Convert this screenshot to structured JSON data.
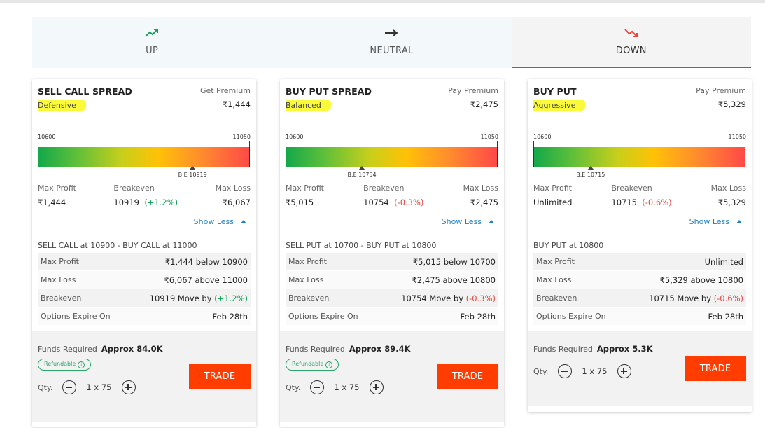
{
  "tabs": [
    {
      "label": "UP",
      "icon": "trend-up-icon",
      "color": "#17a05a"
    },
    {
      "label": "NEUTRAL",
      "icon": "arrow-right-icon",
      "color": "#333333"
    },
    {
      "label": "DOWN",
      "icon": "trend-down-icon",
      "color": "#e8453c",
      "active": true
    }
  ],
  "common": {
    "range_low": "10600",
    "range_high": "11050",
    "max_profit_label": "Max Profit",
    "breakeven_label": "Breakeven",
    "max_loss_label": "Max Loss",
    "show_less": "Show Less",
    "row_max_profit": "Max Profit",
    "row_max_loss": "Max Loss",
    "row_breakeven": "Breakeven",
    "row_expiry": "Options Expire On",
    "funds_label": "Funds Required",
    "refundable": "Refundable",
    "info_glyph": "i",
    "qty_label": "Qty.",
    "trade": "TRADE"
  },
  "cards": [
    {
      "title": "SELL CALL SPREAD",
      "tag": "Defensive",
      "premium_label": "Get Premium",
      "premium": "₹1,444",
      "be_label": "B.E 10919",
      "be_position": 0.73,
      "max_profit": "₹1,444",
      "breakeven": "10919",
      "breakeven_change": "(+1.2%)",
      "max_loss": "₹6,067",
      "legs": "SELL CALL at 10900 - BUY CALL at 11000",
      "max_profit_detail": "₹1,444 below 10900",
      "max_loss_detail": "₹6,067 above 11000",
      "breakeven_detail": "10919 Move by",
      "breakeven_detail_change": "(+1.2%)",
      "expiry": "Feb 28th",
      "funds": "Approx 84.0K",
      "qty": "1 x 75"
    },
    {
      "title": "BUY PUT SPREAD",
      "tag": "Balanced",
      "premium_label": "Pay Premium",
      "premium": "₹2,475",
      "be_label": "B.E 10754",
      "be_position": 0.36,
      "max_profit": "₹5,015",
      "breakeven": "10754",
      "breakeven_change": "(-0.3%)",
      "max_loss": "₹2,475",
      "legs": "SELL PUT at 10700 - BUY PUT at 10800",
      "max_profit_detail": "₹5,015 below 10700",
      "max_loss_detail": "₹2,475 above 10800",
      "breakeven_detail": "10754 Move by",
      "breakeven_detail_change": "(-0.3%)",
      "expiry": "Feb 28th",
      "funds": "Approx 89.4K",
      "qty": "1 x 75"
    },
    {
      "title": "BUY PUT",
      "tag": "Aggressive",
      "premium_label": "Pay Premium",
      "premium": "₹5,329",
      "be_label": "B.E 10715",
      "be_position": 0.27,
      "max_profit": "Unlimited",
      "breakeven": "10715",
      "breakeven_change": "(-0.6%)",
      "max_loss": "₹5,329",
      "legs": "BUY PUT at 10800",
      "max_profit_detail": "Unlimited",
      "max_loss_detail": "₹5,329 above 10800",
      "breakeven_detail": "10715 Move by",
      "breakeven_detail_change": "(-0.6%)",
      "expiry": "Feb 28th",
      "funds": "Approx 5.3K",
      "qty": "1 x 75"
    }
  ]
}
